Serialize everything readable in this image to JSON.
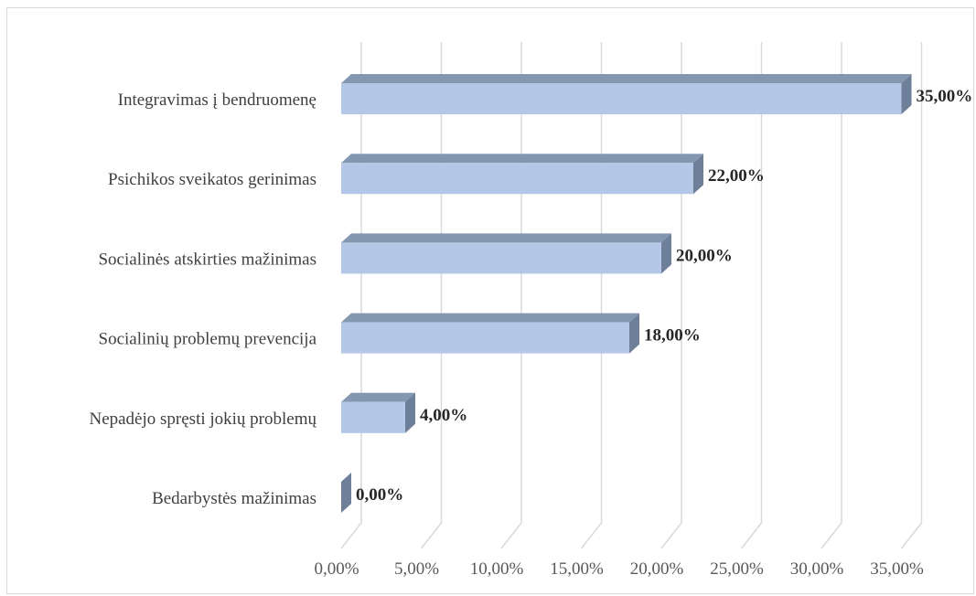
{
  "chart_data": {
    "type": "bar",
    "orientation": "horizontal",
    "style": "3d",
    "categories": [
      "Integravimas į bendruomenę",
      "Psichikos sveikatos gerinimas",
      "Socialinės atskirties mažinimas",
      "Socialinių problemų prevencija",
      "Nepadėjo spręsti jokių problemų",
      "Bedarbystės mažinimas"
    ],
    "values": [
      35,
      22,
      20,
      18,
      4,
      0
    ],
    "data_labels": [
      "35,00%",
      "22,00%",
      "20,00%",
      "18,00%",
      "4,00%",
      "0,00%"
    ],
    "x_ticks": [
      "0,00%",
      "5,00%",
      "10,00%",
      "15,00%",
      "20,00%",
      "25,00%",
      "30,00%",
      "35,00%"
    ],
    "xlim": [
      0,
      35
    ],
    "grid": true,
    "legend": "none",
    "title": "",
    "xlabel": "",
    "ylabel": "",
    "colors": {
      "bar_front": "#b4c7e7",
      "bar_top": "#8497b0",
      "bar_side": "#6d7f99",
      "grid": "#d9d9d9"
    }
  }
}
